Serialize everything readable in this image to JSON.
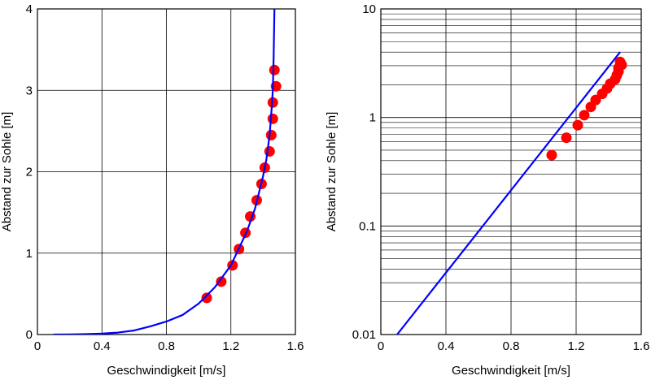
{
  "chart_data": [
    {
      "type": "scatter",
      "xscale": "linear",
      "yscale": "linear",
      "xlabel": "Geschwindigkeit [m/s]",
      "ylabel": "Abstand zur Sohle [m]",
      "xlim": [
        0,
        1.6
      ],
      "ylim": [
        0,
        4
      ],
      "xticks": [
        0,
        0.4,
        0.8,
        1.2,
        1.6
      ],
      "xtick_labels": [
        "0",
        "0.4",
        "0.8",
        "1.2",
        "1.6"
      ],
      "yticks": [
        0,
        1,
        2,
        3,
        4
      ],
      "ytick_labels": [
        "0",
        "1",
        "2",
        "3",
        "4"
      ],
      "grid": true,
      "series": [
        {
          "kind": "points",
          "color": "#ff0000",
          "x": [
            1.05,
            1.14,
            1.21,
            1.25,
            1.29,
            1.32,
            1.36,
            1.39,
            1.41,
            1.44,
            1.45,
            1.46,
            1.46,
            1.48,
            1.47
          ],
          "y": [
            0.45,
            0.65,
            0.85,
            1.05,
            1.25,
            1.45,
            1.65,
            1.85,
            2.05,
            2.25,
            2.45,
            2.65,
            2.85,
            3.05,
            3.25
          ]
        },
        {
          "kind": "line",
          "color": "#0000ff",
          "x": [
            0.1,
            0.2,
            0.3,
            0.4,
            0.5,
            0.6,
            0.7,
            0.8,
            0.9,
            1.0,
            1.1,
            1.2,
            1.3,
            1.35,
            1.4,
            1.42,
            1.44,
            1.45,
            1.46,
            1.465,
            1.47
          ],
          "y": [
            0.0,
            0.002,
            0.005,
            0.011,
            0.024,
            0.05,
            0.1,
            0.16,
            0.24,
            0.38,
            0.58,
            0.85,
            1.27,
            1.55,
            1.95,
            2.15,
            2.45,
            2.7,
            3.0,
            3.4,
            4.0
          ]
        }
      ]
    },
    {
      "type": "scatter",
      "xscale": "linear",
      "yscale": "log",
      "xlabel": "Geschwindigkeit [m/s]",
      "ylabel": "Abstand zur Sohle [m]",
      "xlim": [
        0,
        1.6
      ],
      "ylim": [
        0.01,
        10
      ],
      "xticks": [
        0,
        0.4,
        0.8,
        1.2,
        1.6
      ],
      "xtick_labels": [
        "0",
        "0.4",
        "0.8",
        "1.2",
        "1.6"
      ],
      "yticks": [
        0.01,
        0.1,
        1,
        10
      ],
      "ytick_labels": [
        "0.01",
        "0.1",
        "1",
        "10"
      ],
      "grid": true,
      "series": [
        {
          "kind": "points",
          "color": "#ff0000",
          "x": [
            1.05,
            1.14,
            1.21,
            1.25,
            1.29,
            1.32,
            1.36,
            1.39,
            1.41,
            1.44,
            1.45,
            1.46,
            1.46,
            1.48,
            1.47
          ],
          "y": [
            0.45,
            0.65,
            0.85,
            1.05,
            1.25,
            1.45,
            1.65,
            1.85,
            2.05,
            2.25,
            2.45,
            2.65,
            2.85,
            3.05,
            3.25
          ]
        },
        {
          "kind": "line",
          "color": "#0000ff",
          "x": [
            0.1,
            1.47
          ],
          "y": [
            0.01,
            4.0
          ]
        }
      ]
    }
  ]
}
